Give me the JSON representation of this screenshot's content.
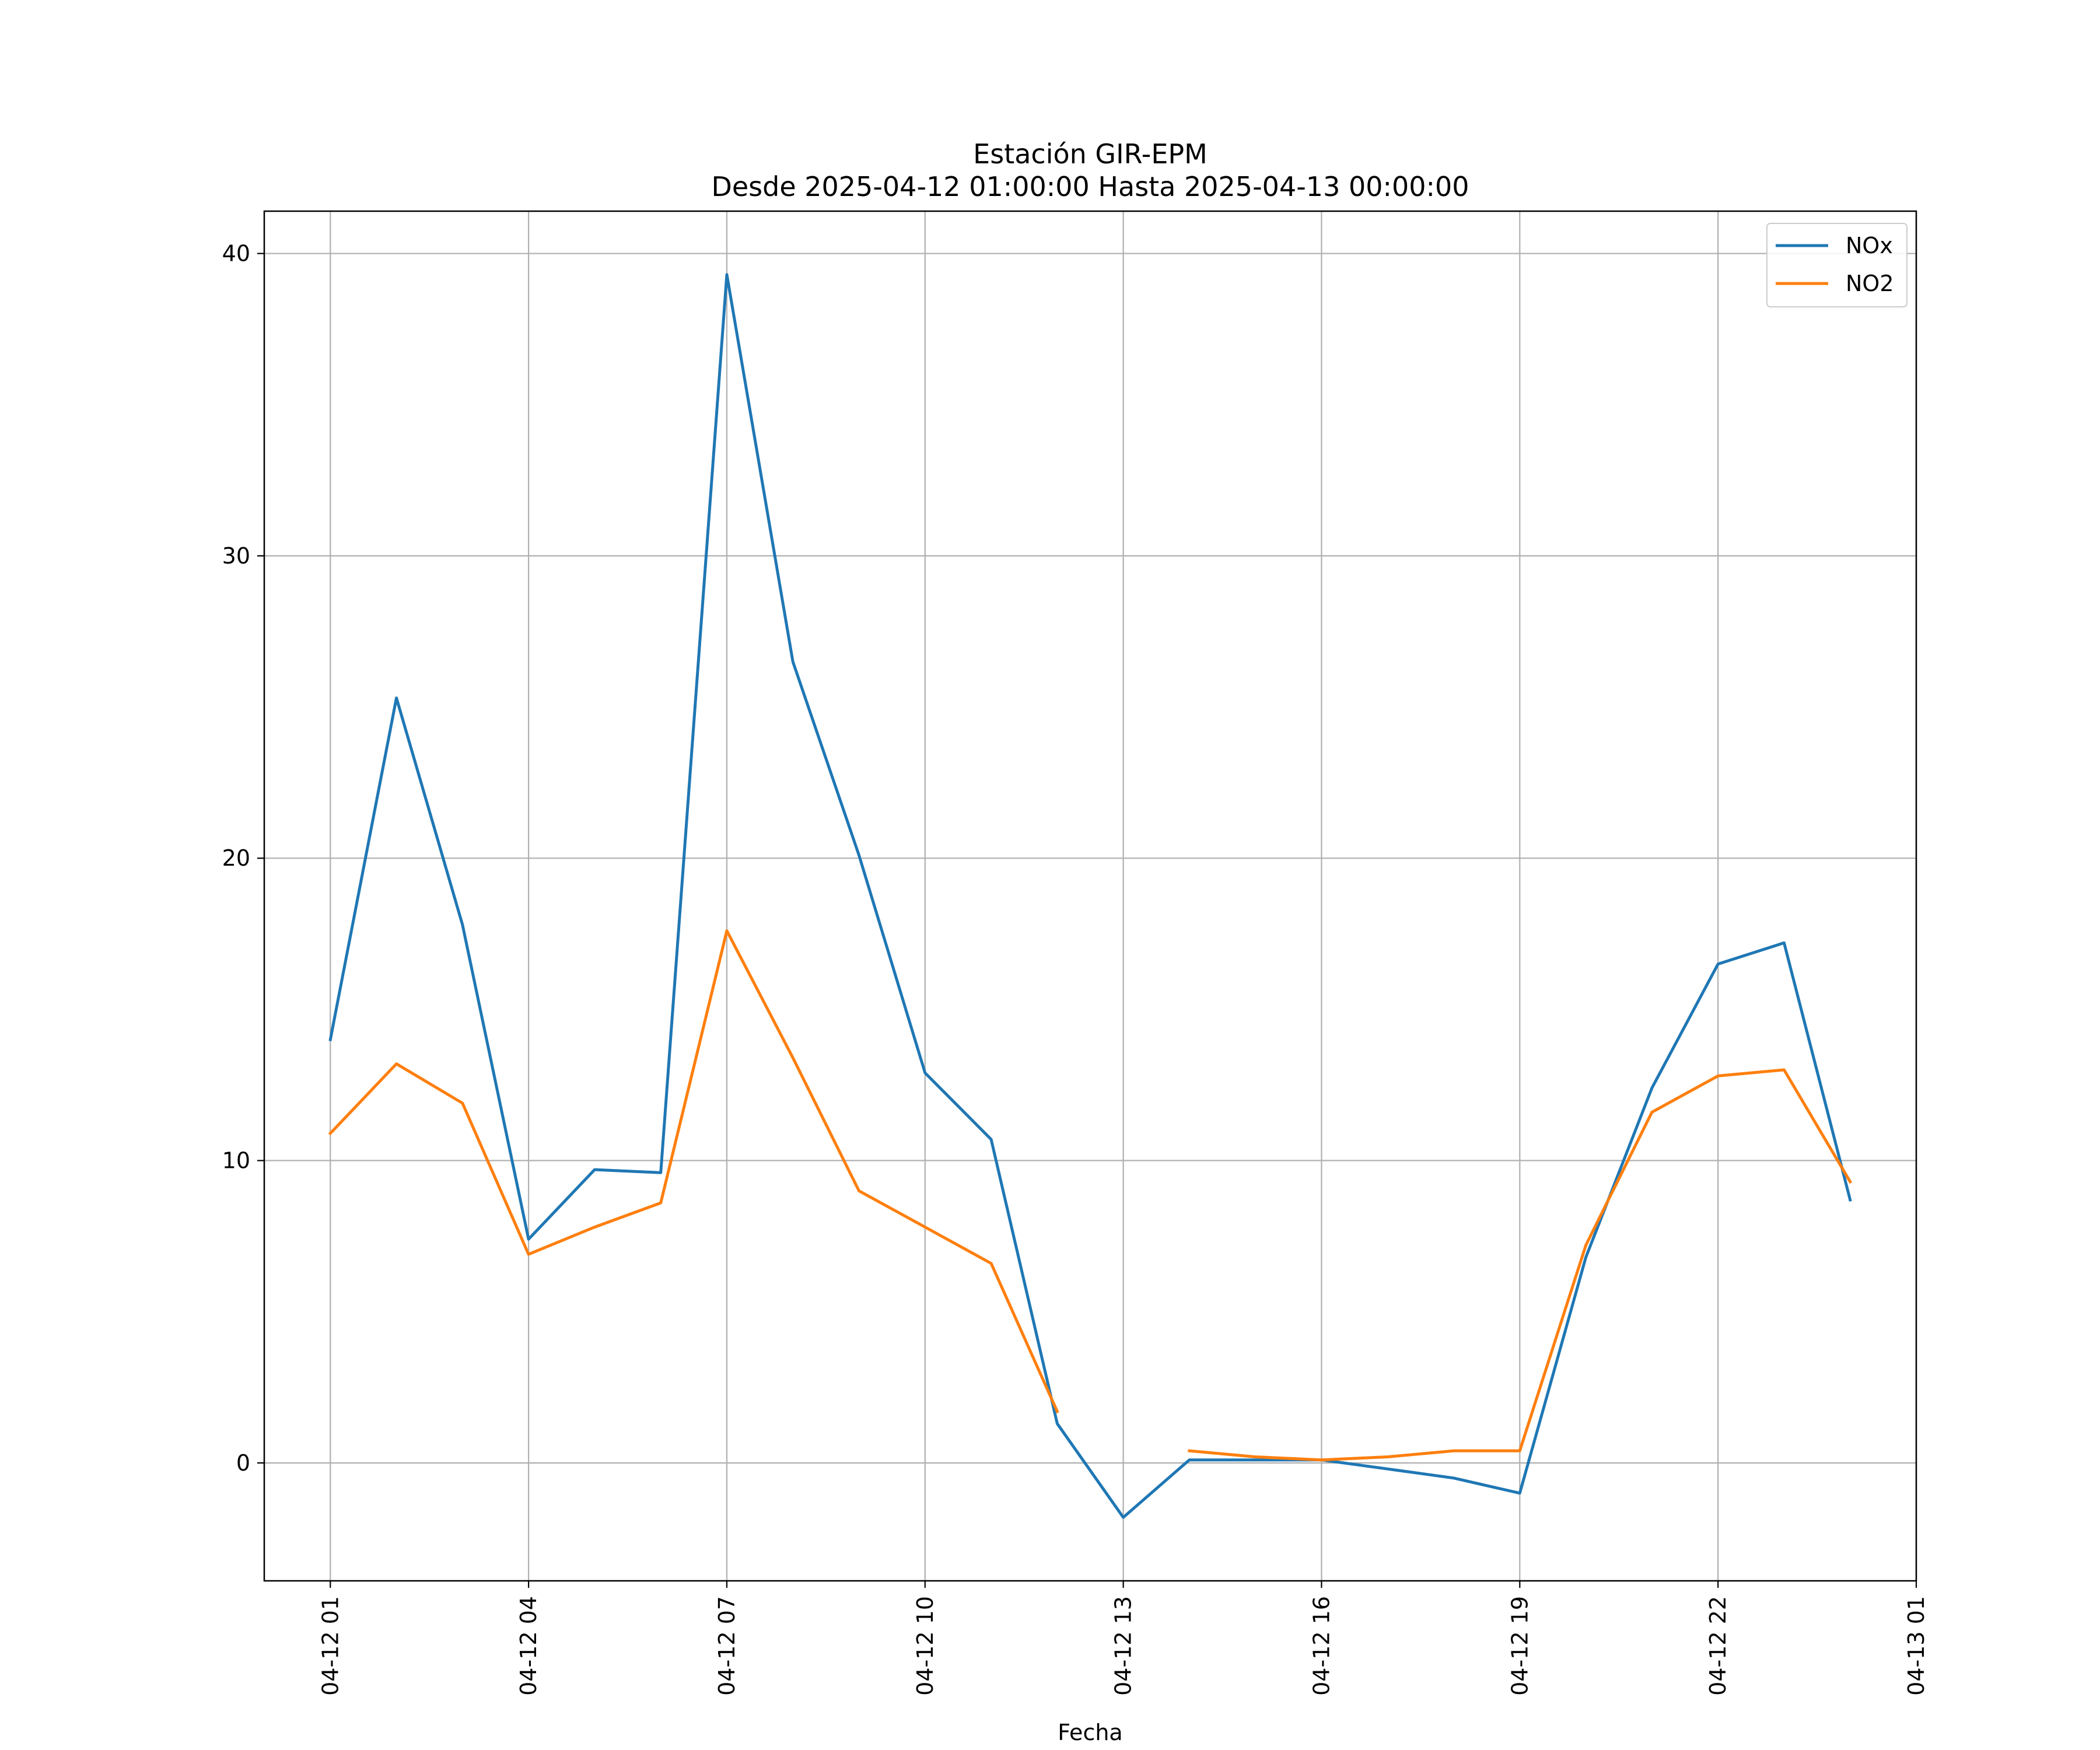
{
  "chart_data": {
    "type": "line",
    "title": "Estación GIR-EPM",
    "subtitle": "Desde 2025-04-12 01:00:00 Hasta 2025-04-13 00:00:00",
    "xlabel": "Fecha",
    "ylabel": "",
    "x": [
      "04-12 01",
      "04-12 02",
      "04-12 03",
      "04-12 04",
      "04-12 05",
      "04-12 06",
      "04-12 07",
      "04-12 08",
      "04-12 09",
      "04-12 10",
      "04-12 11",
      "04-12 12",
      "04-12 13",
      "04-12 14",
      "04-12 15",
      "04-12 16",
      "04-12 17",
      "04-12 18",
      "04-12 19",
      "04-12 20",
      "04-12 21",
      "04-12 22",
      "04-12 23",
      "04-13 00"
    ],
    "xticks": [
      "04-12 01",
      "04-12 04",
      "04-12 07",
      "04-12 10",
      "04-12 13",
      "04-12 16",
      "04-12 19",
      "04-12 22",
      "04-13 01"
    ],
    "xlim": [
      "04-12 00",
      "04-13 01"
    ],
    "yticks": [
      0,
      10,
      20,
      30,
      40
    ],
    "ylim": [
      -3.9,
      41.4
    ],
    "grid": true,
    "legend_position": "top-right",
    "series": [
      {
        "name": "NOx",
        "color": "#1f77b4",
        "values": [
          14.0,
          25.3,
          17.8,
          7.4,
          9.7,
          9.6,
          39.3,
          26.5,
          20.1,
          12.9,
          10.7,
          1.3,
          -1.8,
          0.1,
          0.1,
          0.1,
          -0.2,
          -0.5,
          -1.0,
          6.8,
          12.4,
          16.5,
          17.2,
          8.7
        ]
      },
      {
        "name": "NO2",
        "color": "#ff7f0e",
        "values": [
          10.9,
          13.2,
          11.9,
          6.9,
          7.8,
          8.6,
          17.6,
          13.4,
          9.0,
          7.8,
          6.6,
          1.7,
          null,
          0.4,
          0.2,
          0.1,
          0.2,
          0.4,
          0.4,
          7.2,
          11.6,
          12.8,
          13.0,
          9.3
        ]
      }
    ]
  }
}
